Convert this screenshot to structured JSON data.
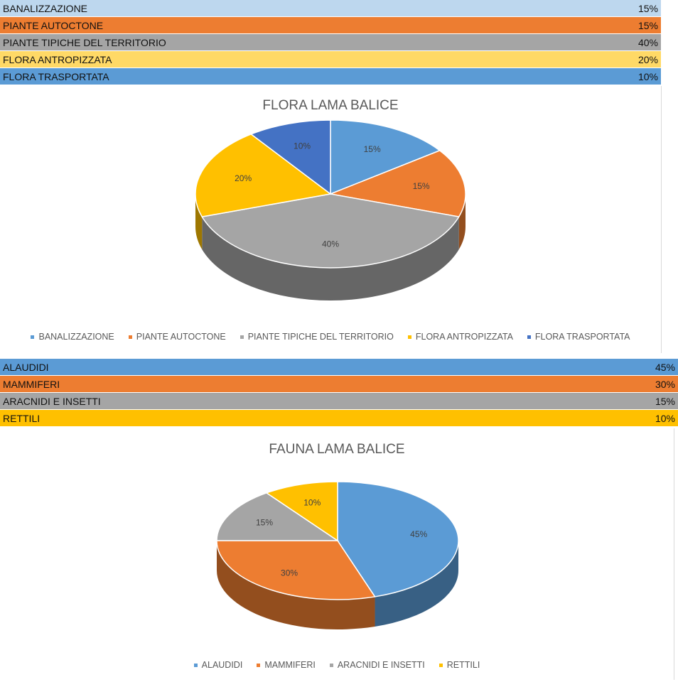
{
  "flora_table": [
    {
      "label": "BANALIZZAZIONE",
      "value": "15%",
      "color": "#BDD7EE"
    },
    {
      "label": "PIANTE AUTOCTONE",
      "value": "15%",
      "color": "#ED7D31"
    },
    {
      "label": "PIANTE TIPICHE DEL TERRITORIO",
      "value": "40%",
      "color": "#A5A5A5"
    },
    {
      "label": "FLORA ANTROPIZZATA",
      "value": "20%",
      "color": "#FFD966"
    },
    {
      "label": "FLORA TRASPORTATA",
      "value": "10%",
      "color": "#5B9BD5"
    }
  ],
  "fauna_table": [
    {
      "label": "ALAUDIDI",
      "value": "45%",
      "color": "#5B9BD5"
    },
    {
      "label": "MAMMIFERI",
      "value": "30%",
      "color": "#ED7D31"
    },
    {
      "label": "ARACNIDI E INSETTI",
      "value": "15%",
      "color": "#A5A5A5"
    },
    {
      "label": "RETTILI",
      "value": "10%",
      "color": "#FFC000"
    }
  ],
  "chart_data": [
    {
      "type": "pie",
      "title": "FLORA LAMA BALICE",
      "categories": [
        "BANALIZZAZIONE",
        "PIANTE AUTOCTONE",
        "PIANTE TIPICHE DEL TERRITORIO",
        "FLORA ANTROPIZZATA",
        "FLORA TRASPORTATA"
      ],
      "values": [
        15,
        15,
        40,
        20,
        10
      ],
      "data_labels": [
        "15%",
        "15%",
        "40%",
        "20%",
        "10%"
      ],
      "colors": [
        "#5B9BD5",
        "#ED7D31",
        "#A5A5A5",
        "#FFC000",
        "#4472C4"
      ],
      "legend_position": "bottom",
      "style": "3d"
    },
    {
      "type": "pie",
      "title": "FAUNA LAMA BALICE",
      "categories": [
        "ALAUDIDI",
        "MAMMIFERI",
        "ARACNIDI E INSETTI",
        "RETTILI"
      ],
      "values": [
        45,
        30,
        15,
        10
      ],
      "data_labels": [
        "45%",
        "30%",
        "15%",
        "10%"
      ],
      "colors": [
        "#5B9BD5",
        "#ED7D31",
        "#A5A5A5",
        "#FFC000"
      ],
      "legend_position": "bottom",
      "style": "3d"
    }
  ]
}
